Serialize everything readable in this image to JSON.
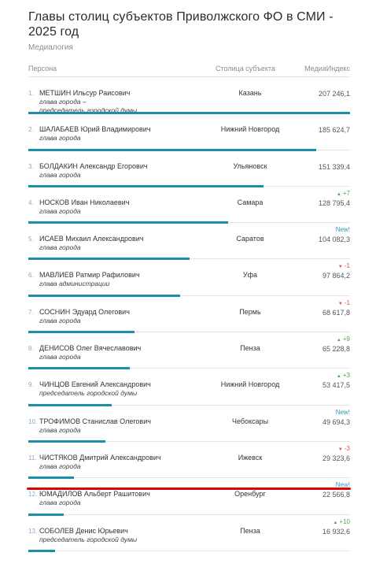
{
  "header": {
    "title": "Главы столиц субъектов Приволжского ФО в СМИ - 2025 год",
    "source": "Медиалогия"
  },
  "columns": {
    "person": "Персона",
    "city": "Столица субъекта",
    "index": "МедиаИндекс"
  },
  "rows": [
    {
      "num": "1.",
      "name": "МЕТШИН Ильсур Раисович",
      "role": "глава города –\nпредседатель городской думы",
      "city": "Казань",
      "value": "207 246,1",
      "change": "",
      "change_type": "",
      "bar": 1.0
    },
    {
      "num": "2.",
      "name": "ШАЛАБАЕВ Юрий Владимирович",
      "role": "глава города",
      "city": "Нижний Новгород",
      "value": "185 624,7",
      "change": "",
      "change_type": "",
      "bar": 0.896
    },
    {
      "num": "3.",
      "name": "БОЛДАКИН Александр Егорович",
      "role": "глава города",
      "city": "Ульяновск",
      "value": "151 339,4",
      "change": "",
      "change_type": "",
      "bar": 0.73
    },
    {
      "num": "4.",
      "name": "НОСКОВ Иван Николаевич",
      "role": "глава города",
      "city": "Самара",
      "value": "128 795,4",
      "change": "+7",
      "change_type": "up",
      "bar": 0.621
    },
    {
      "num": "5.",
      "name": "ИСАЕВ Михаил Александрович",
      "role": "глава города",
      "city": "Саратов",
      "value": "104 082,3",
      "change": "New!",
      "change_type": "new",
      "bar": 0.502
    },
    {
      "num": "6.",
      "name": "МАВЛИЕВ Ратмир Рафилович",
      "role": "глава администрации",
      "city": "Уфа",
      "value": "97 864,2",
      "change": "-1",
      "change_type": "down",
      "bar": 0.472
    },
    {
      "num": "7.",
      "name": "СОСНИН Эдуард Олегович",
      "role": "глава города",
      "city": "Пермь",
      "value": "68 617,8",
      "change": "-1",
      "change_type": "down",
      "bar": 0.331
    },
    {
      "num": "8.",
      "name": "ДЕНИСОВ Олег Вячеславович",
      "role": "глава города",
      "city": "Пенза",
      "value": "65 228,8",
      "change": "+9",
      "change_type": "up",
      "bar": 0.315
    },
    {
      "num": "9.",
      "name": "ЧИНЦОВ Евгений Александрович",
      "role": "председатель городской думы",
      "city": "Нижний Новгород",
      "value": "53 417,5",
      "change": "+3",
      "change_type": "up",
      "bar": 0.258
    },
    {
      "num": "10.",
      "name": "ТРОФИМОВ Станислав Олегович",
      "role": "глава города",
      "city": "Чебоксары",
      "value": "49 694,3",
      "change": "New!",
      "change_type": "new",
      "bar": 0.24
    },
    {
      "num": "11.",
      "name": "ЧИСТЯКОВ Дмитрий Александрович",
      "role": "глава города",
      "city": "Ижевск",
      "value": "29 323,6",
      "change": "-3",
      "change_type": "down",
      "bar": 0.141
    },
    {
      "num": "12.",
      "name": "ЮМАДИЛОВ Альберт Рашитович",
      "role": "глава города",
      "city": "Оренбург",
      "value": "22 566,8",
      "change": "New!",
      "change_type": "new",
      "bar": 0.109
    },
    {
      "num": "13.",
      "name": "СОБОЛЕВ Денис Юрьевич",
      "role": "председатель городской думы",
      "city": "Пенза",
      "value": "16 932,6",
      "change": "+10",
      "change_type": "up",
      "bar": 0.082
    }
  ],
  "colors": {
    "bar": "#1e8fa8",
    "up": "#4aa84a",
    "down": "#e05050",
    "new": "#26a0c0",
    "highlight": "#e00000"
  }
}
